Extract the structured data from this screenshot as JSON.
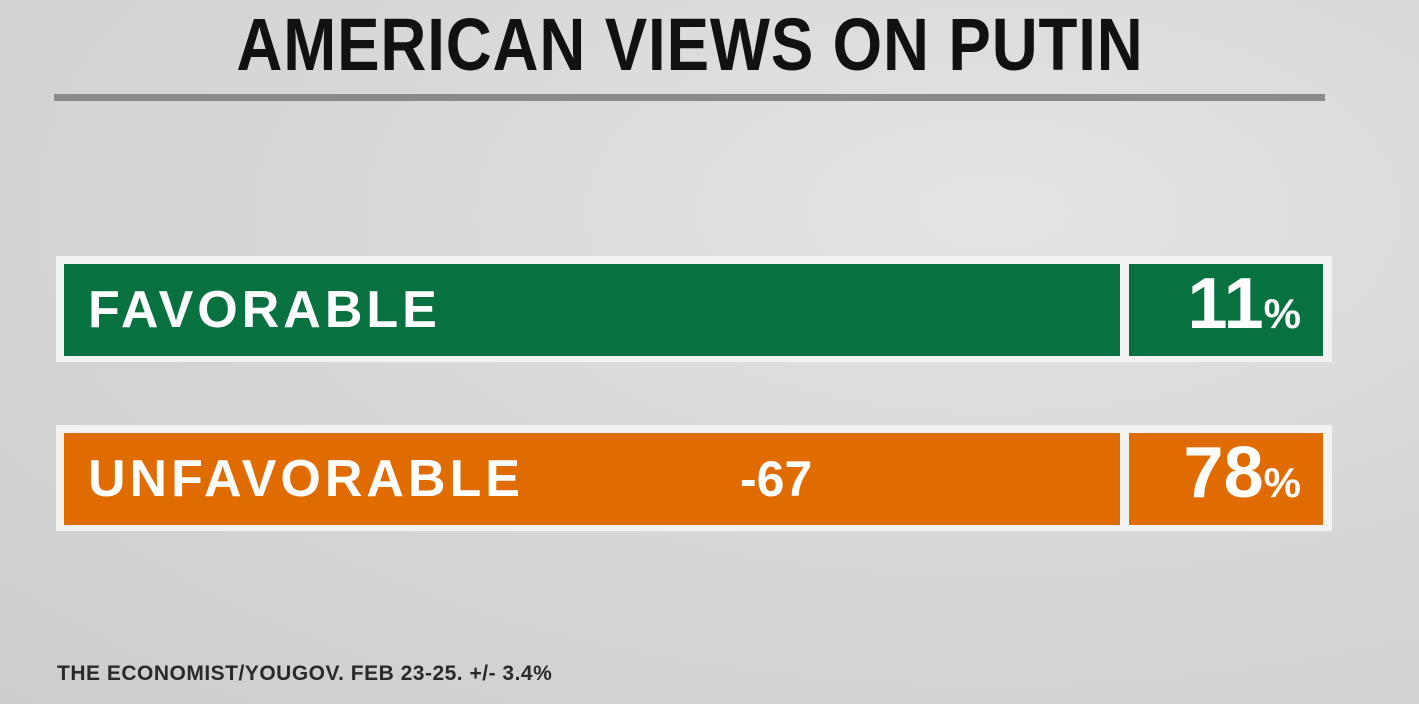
{
  "title": "AMERICAN VIEWS ON PUTIN",
  "rows": [
    {
      "label": "FAVORABLE",
      "value": "11",
      "unit": "%"
    },
    {
      "label": "UNFAVORABLE",
      "value": "78",
      "unit": "%",
      "difference": "-67"
    }
  ],
  "source": "THE ECONOMIST/YOUGOV. FEB 23-25. +/- 3.4%"
}
